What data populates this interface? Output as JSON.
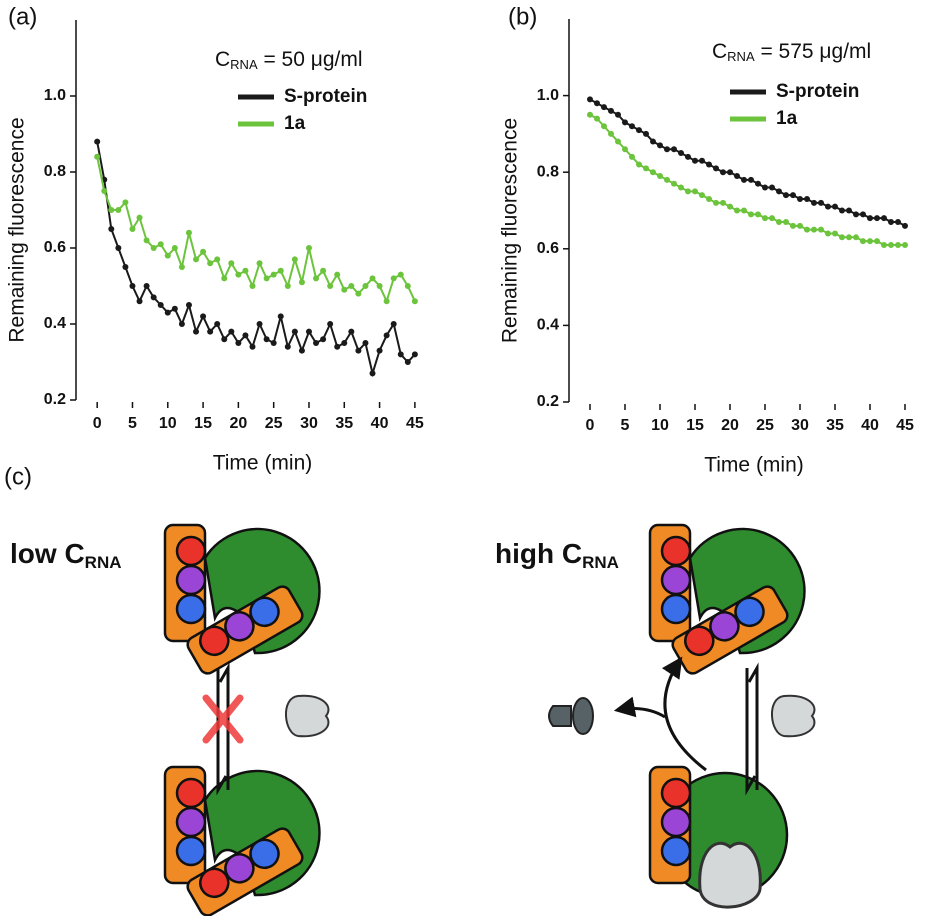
{
  "chart_data": [
    {
      "type": "line",
      "panel_label": "(a)",
      "x_label": "Time (min)",
      "y_label": "Remaining fluorescence",
      "annotation": {
        "main": "C",
        "sub": "RNA",
        "tail": " = 50 μg/ml"
      },
      "x": [
        0,
        1,
        2,
        3,
        4,
        5,
        6,
        7,
        8,
        9,
        10,
        11,
        12,
        13,
        14,
        15,
        16,
        17,
        18,
        19,
        20,
        21,
        22,
        23,
        24,
        25,
        26,
        27,
        28,
        29,
        30,
        31,
        32,
        33,
        34,
        35,
        36,
        37,
        38,
        39,
        40,
        41,
        42,
        43,
        44,
        45
      ],
      "series": [
        {
          "name": "S-protein",
          "color": "#1a1a1a",
          "values": [
            0.88,
            0.78,
            0.65,
            0.6,
            0.55,
            0.5,
            0.46,
            0.5,
            0.47,
            0.45,
            0.43,
            0.44,
            0.4,
            0.45,
            0.38,
            0.42,
            0.38,
            0.4,
            0.36,
            0.38,
            0.35,
            0.37,
            0.34,
            0.4,
            0.36,
            0.35,
            0.42,
            0.34,
            0.38,
            0.33,
            0.38,
            0.35,
            0.36,
            0.4,
            0.34,
            0.35,
            0.38,
            0.33,
            0.35,
            0.27,
            0.33,
            0.37,
            0.4,
            0.32,
            0.3,
            0.32
          ]
        },
        {
          "name": "1a",
          "color": "#6cc43c",
          "values": [
            0.84,
            0.75,
            0.7,
            0.7,
            0.72,
            0.65,
            0.68,
            0.62,
            0.6,
            0.61,
            0.58,
            0.6,
            0.55,
            0.64,
            0.57,
            0.59,
            0.56,
            0.57,
            0.52,
            0.56,
            0.53,
            0.54,
            0.5,
            0.56,
            0.52,
            0.53,
            0.54,
            0.5,
            0.57,
            0.51,
            0.6,
            0.52,
            0.54,
            0.5,
            0.53,
            0.49,
            0.5,
            0.48,
            0.5,
            0.52,
            0.5,
            0.46,
            0.52,
            0.53,
            0.5,
            0.46
          ]
        }
      ],
      "xlim": [
        -3,
        47
      ],
      "xticks": [
        0,
        5,
        10,
        15,
        20,
        25,
        30,
        35,
        40,
        45
      ],
      "ylim": [
        0.2,
        1.2
      ],
      "yticks": [
        0.2,
        0.4,
        0.6,
        0.8,
        {
          "value": 1,
          "label": "1.0"
        }
      ],
      "legend": "upper right"
    },
    {
      "type": "line",
      "panel_label": "(b)",
      "x_label": "Time (min)",
      "y_label": "Remaining fluorescence",
      "annotation": {
        "main": "C",
        "sub": "RNA",
        "tail": " = 575 μg/ml"
      },
      "x": [
        0,
        1,
        2,
        3,
        4,
        5,
        6,
        7,
        8,
        9,
        10,
        11,
        12,
        13,
        14,
        15,
        16,
        17,
        18,
        19,
        20,
        21,
        22,
        23,
        24,
        25,
        26,
        27,
        28,
        29,
        30,
        31,
        32,
        33,
        34,
        35,
        36,
        37,
        38,
        39,
        40,
        41,
        42,
        43,
        44,
        45
      ],
      "series": [
        {
          "name": "S-protein",
          "color": "#1a1a1a",
          "values": [
            0.99,
            0.98,
            0.97,
            0.96,
            0.95,
            0.93,
            0.92,
            0.91,
            0.9,
            0.88,
            0.87,
            0.86,
            0.86,
            0.85,
            0.84,
            0.83,
            0.83,
            0.82,
            0.81,
            0.8,
            0.8,
            0.79,
            0.78,
            0.78,
            0.77,
            0.76,
            0.76,
            0.75,
            0.74,
            0.74,
            0.73,
            0.73,
            0.72,
            0.72,
            0.71,
            0.71,
            0.7,
            0.7,
            0.69,
            0.69,
            0.68,
            0.68,
            0.68,
            0.67,
            0.67,
            0.66
          ]
        },
        {
          "name": "1a",
          "color": "#6cc43c",
          "values": [
            0.95,
            0.94,
            0.92,
            0.9,
            0.88,
            0.86,
            0.84,
            0.82,
            0.81,
            0.8,
            0.79,
            0.78,
            0.77,
            0.76,
            0.75,
            0.75,
            0.74,
            0.73,
            0.72,
            0.72,
            0.71,
            0.7,
            0.7,
            0.69,
            0.69,
            0.68,
            0.68,
            0.67,
            0.67,
            0.66,
            0.66,
            0.65,
            0.65,
            0.65,
            0.64,
            0.64,
            0.63,
            0.63,
            0.63,
            0.62,
            0.62,
            0.62,
            0.61,
            0.61,
            0.61,
            0.61
          ]
        }
      ],
      "xlim": [
        -3,
        47
      ],
      "xticks": [
        0,
        5,
        10,
        15,
        20,
        25,
        30,
        35,
        40,
        45
      ],
      "ylim": [
        0.2,
        1.2
      ],
      "yticks": [
        0.2,
        0.4,
        0.6,
        0.8,
        {
          "value": 1,
          "label": "1.0"
        }
      ],
      "legend": "upper right"
    }
  ],
  "panel_c": {
    "label": "(c)",
    "left": {
      "main": "low C",
      "sub": "RNA"
    },
    "right": {
      "main": "high C",
      "sub": "RNA"
    }
  }
}
